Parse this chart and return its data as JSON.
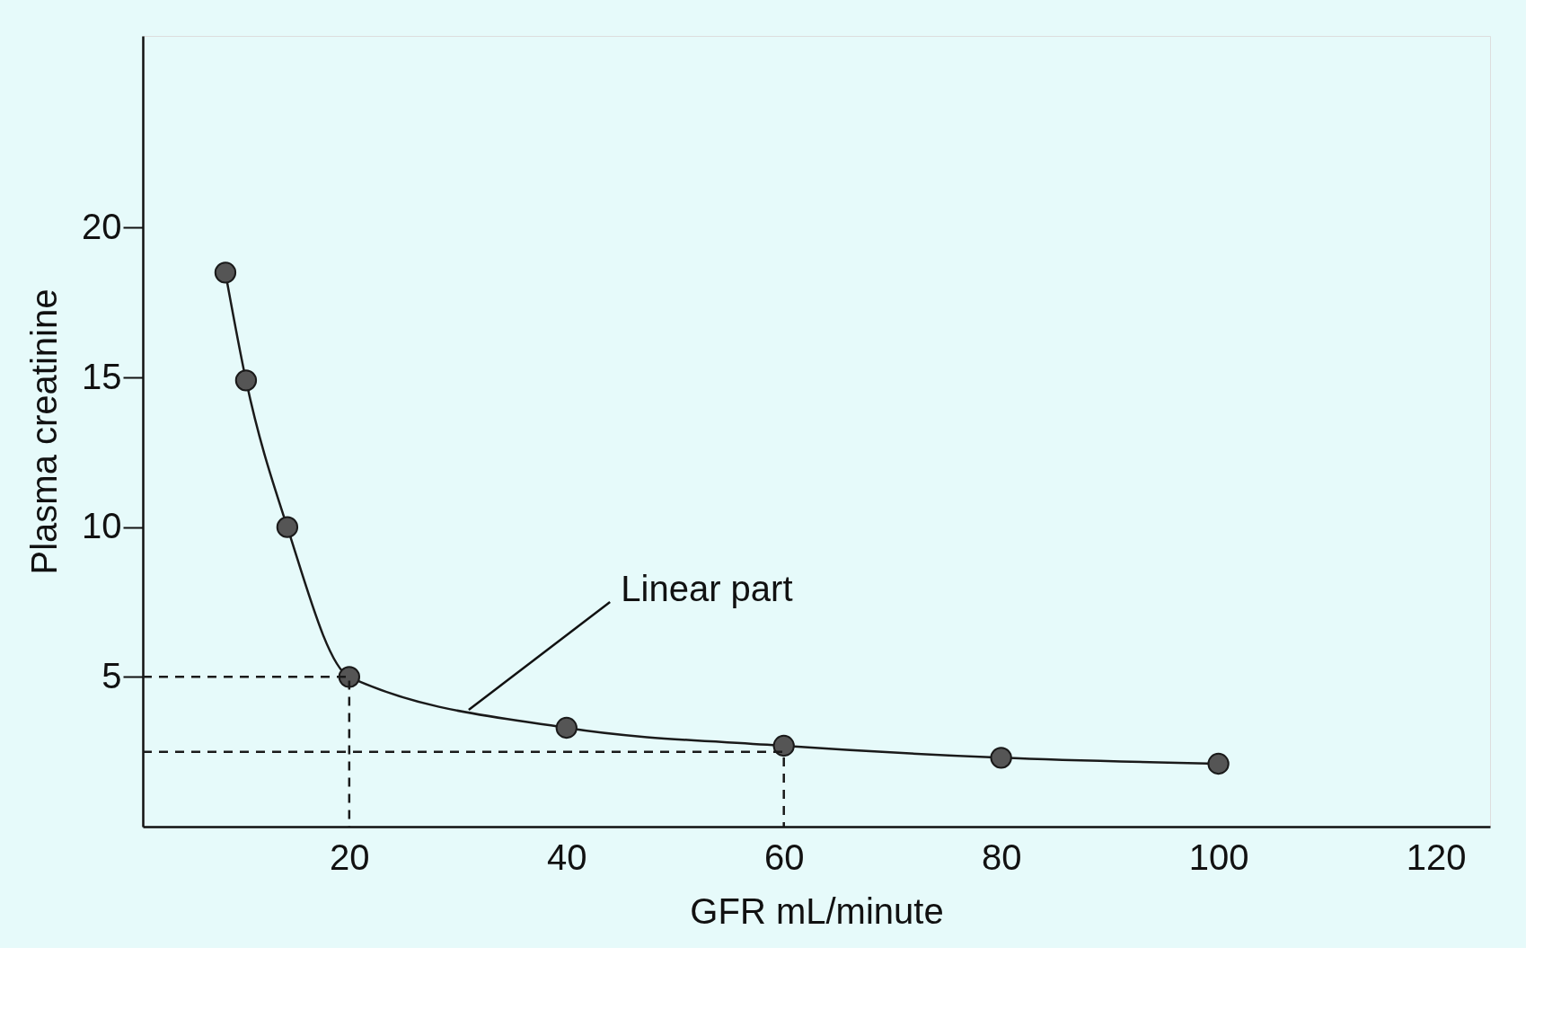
{
  "chart_data": {
    "type": "line",
    "xlabel": "GFR mL/minute",
    "ylabel": "Plasma creatinine",
    "xlim": [
      1,
      125
    ],
    "ylim": [
      0,
      26.4
    ],
    "xticks": [
      20,
      40,
      60,
      80,
      100,
      120
    ],
    "yticks": [
      5,
      10,
      15,
      20
    ],
    "grid": false,
    "series": [
      {
        "color": "#1a1a1a",
        "marker": "circle",
        "line_style": "solid",
        "x": [
          8.6,
          10.5,
          14.3,
          20,
          40,
          60,
          80,
          100
        ],
        "values": [
          18.5,
          14.9,
          10,
          5,
          3.3,
          2.7,
          2.3,
          2.1
        ]
      },
      {
        "color": "#1a1a1a",
        "marker": "none",
        "line_style": "dashed",
        "x": [
          1,
          20,
          20
        ],
        "values": [
          5,
          5,
          0
        ]
      },
      {
        "color": "#1a1a1a",
        "marker": "none",
        "line_style": "dashed",
        "x": [
          1,
          60,
          60
        ],
        "values": [
          2.5,
          2.5,
          0
        ]
      }
    ],
    "annotations": [
      {
        "text": "Linear part",
        "x": 31,
        "y": 3.9
      }
    ]
  }
}
